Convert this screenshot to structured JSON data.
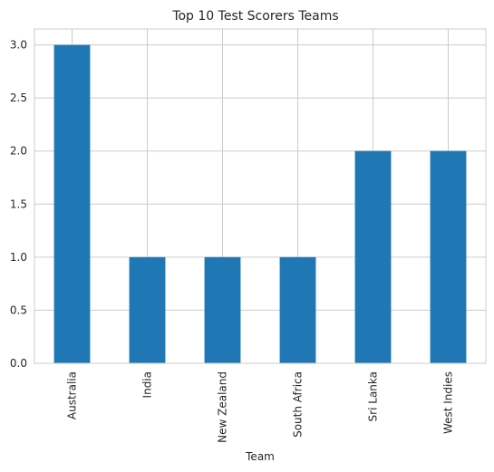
{
  "chart_data": {
    "type": "bar",
    "title": "Top 10 Test Scorers Teams",
    "xlabel": "Team",
    "ylabel": "",
    "categories": [
      "Australia",
      "India",
      "New Zealand",
      "South Africa",
      "Sri Lanka",
      "West Indies"
    ],
    "values": [
      3,
      1,
      1,
      1,
      2,
      2
    ],
    "ylim": [
      0,
      3.15
    ],
    "yticks": [
      "0.0",
      "0.5",
      "1.0",
      "1.5",
      "2.0",
      "2.5",
      "3.0"
    ],
    "grid": true,
    "bar_color": "#1f77b4",
    "grid_color": "#cccccc"
  }
}
